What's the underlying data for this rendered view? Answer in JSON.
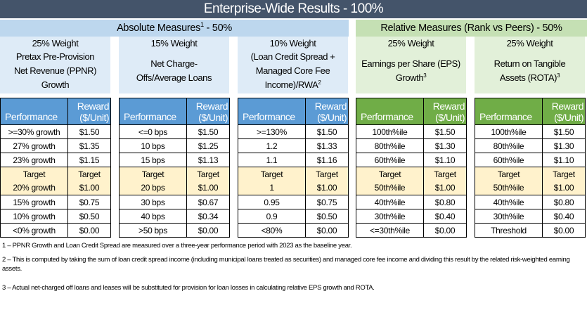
{
  "title": "Enterprise-Wide Results - 100%",
  "groups": {
    "absolute": {
      "label": "Absolute Measures",
      "sup": "1",
      "suffix": " - 50%"
    },
    "relative": {
      "label": "Relative Measures (Rank vs Peers) - 50%"
    }
  },
  "header_cols": {
    "performance": "Performance",
    "reward_line1": "Reward",
    "reward_line2": "($/Unit)"
  },
  "measures": [
    {
      "weight": "25% Weight",
      "desc_lines": [
        "Pretax Pre-Provision",
        "Net Revenue (PPNR)",
        "Growth"
      ],
      "desc_sup": "",
      "rows": [
        [
          ">=30% growth",
          "$1.50"
        ],
        [
          "27% growth",
          "$1.35"
        ],
        [
          "23% growth",
          "$1.15"
        ],
        [
          "Target",
          "Target"
        ],
        [
          "20% growth",
          "$1.00"
        ],
        [
          "15% growth",
          "$0.75"
        ],
        [
          "10% growth",
          "$0.50"
        ],
        [
          "<0% growth",
          "$0.00"
        ]
      ]
    },
    {
      "weight": "15% Weight",
      "desc_lines": [
        "Net Charge-",
        "Offs/Average Loans"
      ],
      "desc_sup": "",
      "rows": [
        [
          "<=0 bps",
          "$1.50"
        ],
        [
          "10 bps",
          "$1.25"
        ],
        [
          "15 bps",
          "$1.13"
        ],
        [
          "Target",
          "Target"
        ],
        [
          "20 bps",
          "$1.00"
        ],
        [
          "30 bps",
          "$0.67"
        ],
        [
          "40 bps",
          "$0.34"
        ],
        [
          ">50 bps",
          "$0.00"
        ]
      ]
    },
    {
      "weight": "10% Weight",
      "desc_lines": [
        "(Loan Credit Spread +",
        "Managed Core Fee",
        "Income)/RWA"
      ],
      "desc_sup": "2",
      "rows": [
        [
          ">=130%",
          "$1.50"
        ],
        [
          "1.2",
          "$1.33"
        ],
        [
          "1.1",
          "$1.16"
        ],
        [
          "Target",
          "Target"
        ],
        [
          "1",
          "$1.00"
        ],
        [
          "0.95",
          "$0.75"
        ],
        [
          "0.9",
          "$0.50"
        ],
        [
          "<80%",
          "$0.00"
        ]
      ]
    },
    {
      "weight": "25% Weight",
      "desc_lines": [
        "Earnings per Share (EPS)",
        "Growth"
      ],
      "desc_sup": "3",
      "rows": [
        [
          "100th%ile",
          "$1.50"
        ],
        [
          "80th%ile",
          "$1.30"
        ],
        [
          "60th%ile",
          "$1.10"
        ],
        [
          "Target",
          "Target"
        ],
        [
          "50th%ile",
          "$1.00"
        ],
        [
          "40th%ile",
          "$0.80"
        ],
        [
          "30th%ile",
          "$0.40"
        ],
        [
          "<=30th%ile",
          "$0.00"
        ]
      ]
    },
    {
      "weight": "25% Weight",
      "desc_lines": [
        "Return on Tangible",
        "Assets (ROTA)"
      ],
      "desc_sup": "3",
      "rows": [
        [
          "100th%ile",
          "$1.50"
        ],
        [
          "80th%ile",
          "$1.30"
        ],
        [
          "60th%ile",
          "$1.10"
        ],
        [
          "Target",
          "Target"
        ],
        [
          "50th%ile",
          "$1.00"
        ],
        [
          "40th%ile",
          "$0.80"
        ],
        [
          "30th%ile",
          "$0.40"
        ],
        [
          "Threshold",
          "$0.00"
        ]
      ]
    }
  ],
  "footnotes": [
    "1 – PPNR Growth and Loan Credit Spread are measured over a three-year performance period with 2023 as the baseline year.",
    "2 – This is computed by taking the sum of loan credit spread income (including municipal loans treated as securities) and managed core fee income and dividing this result by the related risk-weighted earning assets.",
    "3 – Actual net-charged off loans and leases will be substituted for provision for loan losses in calculating relative EPS growth and ROTA."
  ]
}
